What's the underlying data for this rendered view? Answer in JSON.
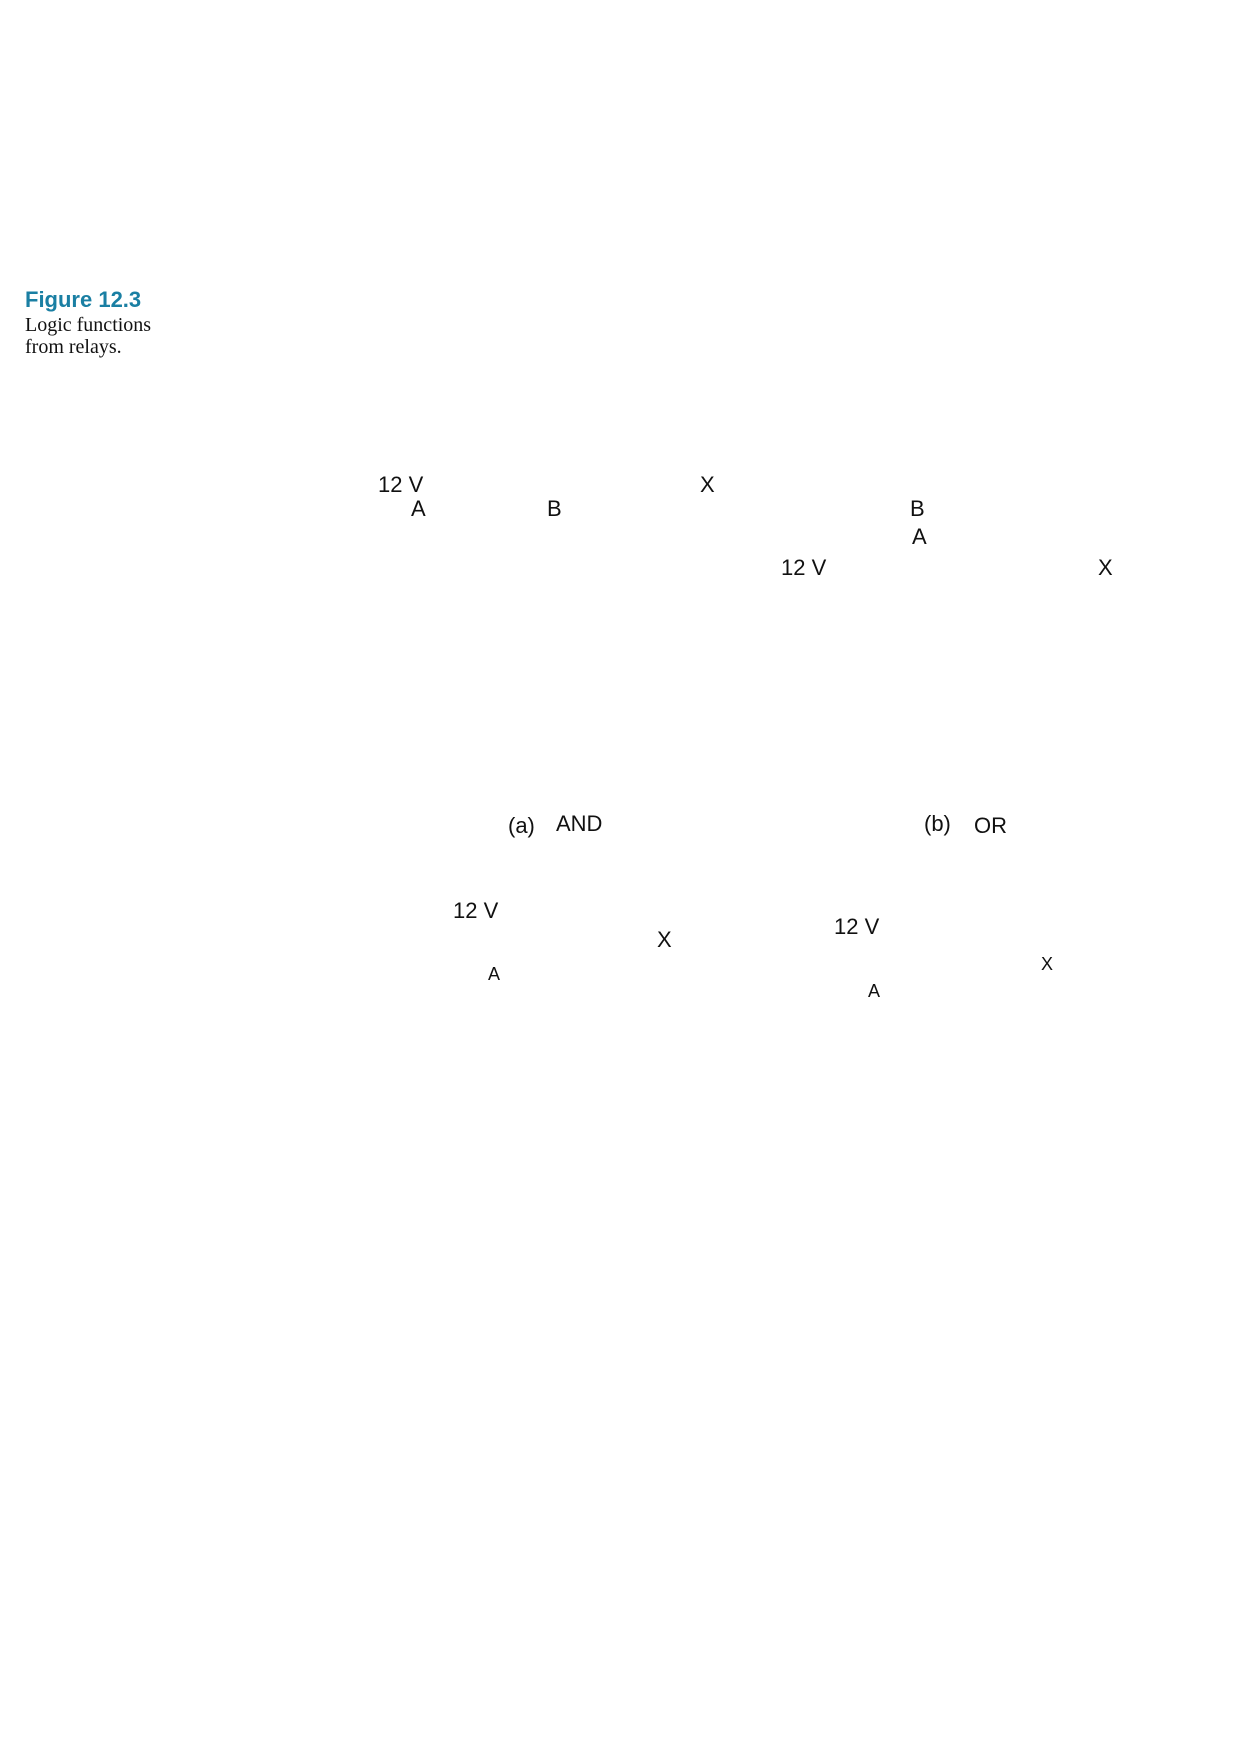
{
  "caption": {
    "number": "Figure 12.3",
    "line1": "Logic functions",
    "line2": "from relays."
  },
  "diagram_a": {
    "supply": "12 V",
    "input_a": "A",
    "input_b": "B",
    "output": "X",
    "label_letter": "(a)",
    "label_name": "AND"
  },
  "diagram_b": {
    "input_b": "B",
    "input_a": "A",
    "supply": "12 V",
    "output": "X",
    "label_letter": "(b)",
    "label_name": "OR"
  },
  "diagram_c": {
    "supply": "12 V",
    "output": "X",
    "input_a": "A"
  },
  "diagram_d": {
    "supply": "12 V",
    "output": "X",
    "input_a": "A"
  }
}
